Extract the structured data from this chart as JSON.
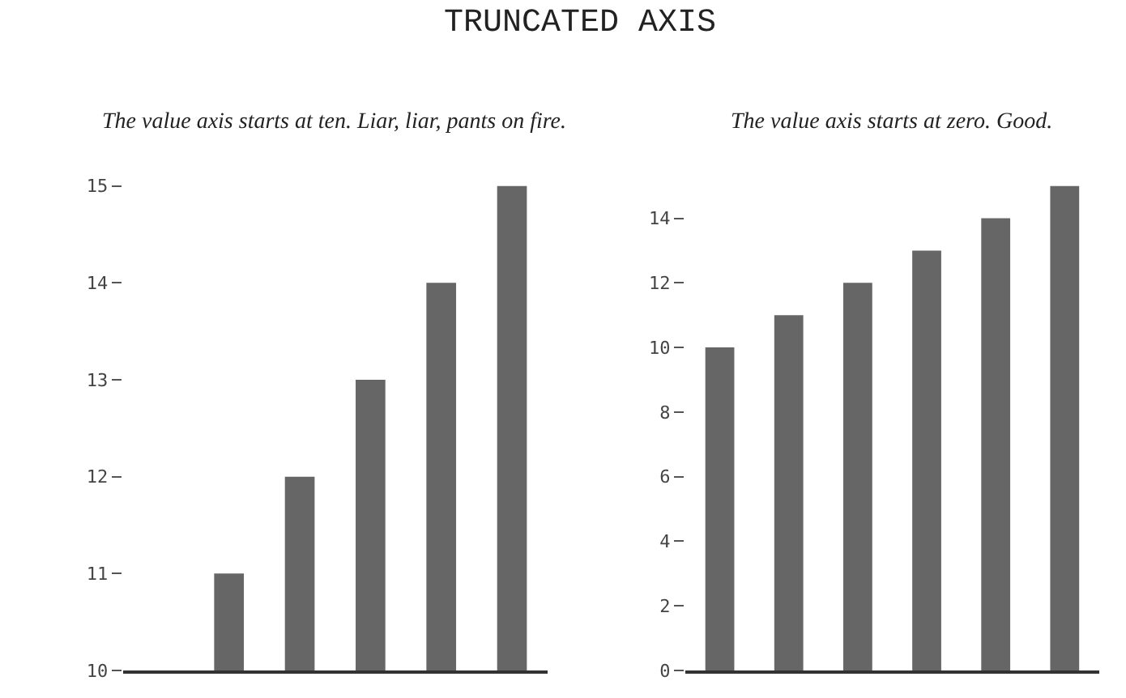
{
  "chart_data": [
    {
      "type": "bar",
      "title": "TRUNCATED AXIS",
      "subtitle": "The value axis starts at ten. Liar, liar, pants on fire.",
      "categories": [
        null,
        null,
        null,
        null,
        null,
        null
      ],
      "values": [
        10,
        11,
        12,
        13,
        14,
        15
      ],
      "color": "#666666",
      "ylim": [
        10,
        15
      ],
      "yticks": [
        10,
        11,
        12,
        13,
        14,
        15
      ]
    },
    {
      "type": "bar",
      "subtitle": "The value axis starts at zero. Good.",
      "categories": [
        null,
        null,
        null,
        null,
        null,
        null
      ],
      "values": [
        10,
        11,
        12,
        13,
        14,
        15
      ],
      "color": "#666666",
      "ylim": [
        0,
        15
      ],
      "yticks": [
        0,
        2,
        4,
        6,
        8,
        10,
        12,
        14
      ]
    }
  ]
}
